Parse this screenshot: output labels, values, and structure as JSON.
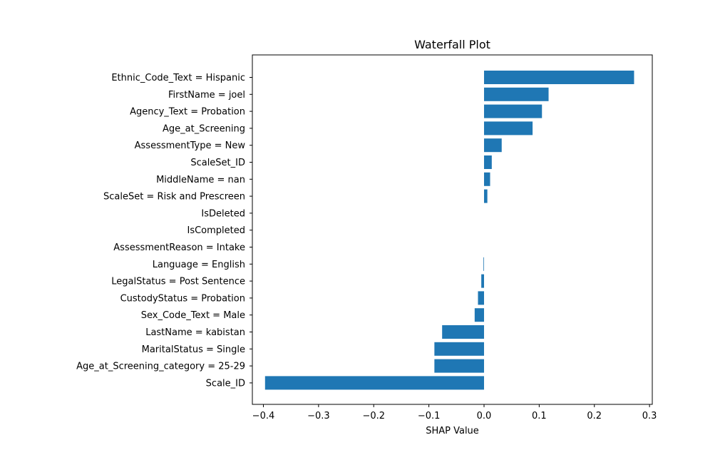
{
  "chart_data": {
    "type": "bar",
    "orientation": "horizontal",
    "title": "Waterfall Plot",
    "xlabel": "SHAP Value",
    "ylabel": "",
    "xlim": [
      -0.42,
      0.305
    ],
    "xticks": [
      -0.4,
      -0.3,
      -0.2,
      -0.1,
      0.0,
      0.1,
      0.2,
      0.3
    ],
    "xtick_labels": [
      "−0.4",
      "−0.3",
      "−0.2",
      "−0.1",
      "0.0",
      "0.1",
      "0.2",
      "0.3"
    ],
    "grid": false,
    "bar_color": "#1f77b4",
    "categories": [
      "Ethnic_Code_Text = Hispanic",
      "FirstName = joel",
      "Agency_Text = Probation",
      "Age_at_Screening",
      "AssessmentType = New",
      "ScaleSet_ID",
      "MiddleName = nan",
      "ScaleSet = Risk and Prescreen",
      "IsDeleted",
      "IsCompleted",
      "AssessmentReason = Intake",
      "Language = English",
      "LegalStatus = Post Sentence",
      "CustodyStatus = Probation",
      "Sex_Code_Text = Male",
      "LastName = kabistan",
      "MaritalStatus = Single",
      "Age_at_Screening_category = 25-29",
      "Scale_ID"
    ],
    "values": [
      0.272,
      0.117,
      0.105,
      0.088,
      0.032,
      0.014,
      0.011,
      0.006,
      0.0,
      0.0,
      0.0,
      -0.001,
      -0.005,
      -0.011,
      -0.017,
      -0.076,
      -0.09,
      -0.09,
      -0.397
    ]
  }
}
